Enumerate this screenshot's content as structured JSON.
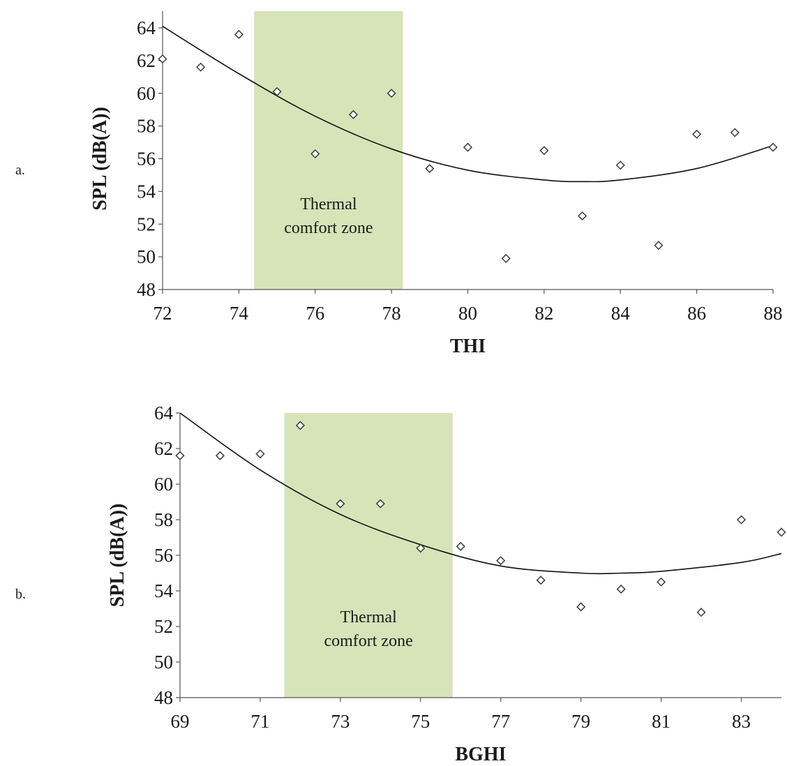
{
  "colors": {
    "zone_fill": "#d6e4b8",
    "marker_stroke": "#3a3a3a",
    "trend_line": "#111111"
  },
  "chart_data": [
    {
      "type": "scatter",
      "panel_label": "a.",
      "title": "",
      "xlabel": "THI",
      "ylabel": "SPL (dB(A))",
      "xlim": [
        72,
        88
      ],
      "ylim": [
        48,
        64
      ],
      "xticks": [
        "72",
        "74",
        "76",
        "78",
        "80",
        "82",
        "84",
        "86",
        "88"
      ],
      "yticks": [
        "48",
        "50",
        "52",
        "54",
        "56",
        "58",
        "60",
        "62",
        "64"
      ],
      "grid": false,
      "zone": {
        "x_start": 74.4,
        "x_end": 78.3,
        "label_lines": [
          "Thermal",
          "comfort zone"
        ]
      },
      "x": [
        72,
        73,
        74,
        75,
        76,
        77,
        78,
        79,
        80,
        81,
        82,
        83,
        84,
        85,
        86,
        87,
        88
      ],
      "y": [
        62.1,
        61.6,
        63.6,
        60.1,
        56.3,
        58.7,
        60.0,
        55.4,
        56.7,
        49.9,
        56.5,
        52.5,
        55.6,
        50.7,
        57.5,
        57.6,
        56.7
      ],
      "trend": {
        "type": "polynomial-2",
        "x": [
          72,
          74,
          76,
          78,
          80,
          82,
          83,
          84,
          86,
          88
        ],
        "y": [
          64.1,
          61.2,
          58.6,
          56.6,
          55.3,
          54.7,
          54.6,
          54.7,
          55.4,
          56.8
        ]
      }
    },
    {
      "type": "scatter",
      "panel_label": "b.",
      "title": "",
      "xlabel": "BGHI",
      "ylabel": "SPL (dB(A))",
      "xlim": [
        69,
        84
      ],
      "ylim": [
        48,
        64
      ],
      "xticks": [
        "69",
        "71",
        "73",
        "75",
        "77",
        "79",
        "81",
        "83"
      ],
      "yticks": [
        "48",
        "50",
        "52",
        "54",
        "56",
        "58",
        "60",
        "62",
        "64"
      ],
      "grid": false,
      "zone": {
        "x_start": 71.6,
        "x_end": 75.8,
        "label_lines": [
          "Thermal",
          "comfort zone"
        ]
      },
      "x": [
        69,
        70,
        71,
        72,
        73,
        74,
        75,
        76,
        77,
        78,
        79,
        80,
        81,
        82,
        83,
        84
      ],
      "y": [
        61.6,
        61.6,
        61.7,
        63.3,
        58.9,
        58.9,
        56.4,
        56.5,
        55.7,
        54.6,
        53.1,
        54.1,
        54.5,
        52.8,
        58.0,
        57.3
      ],
      "trend": {
        "type": "polynomial-2",
        "x": [
          69,
          71,
          73,
          75,
          77,
          79,
          80,
          81,
          83,
          84
        ],
        "y": [
          64.0,
          60.8,
          58.3,
          56.6,
          55.4,
          55.0,
          55.0,
          55.1,
          55.6,
          56.1
        ]
      }
    }
  ]
}
